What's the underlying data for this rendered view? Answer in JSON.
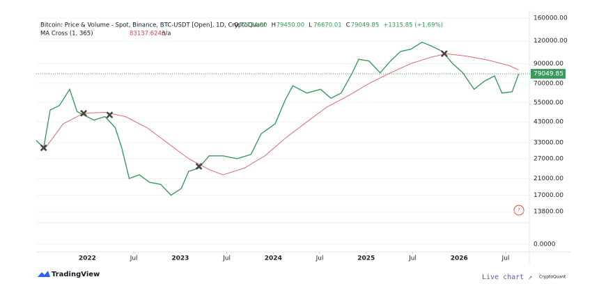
{
  "chart_data": {
    "type": "line",
    "title": "Bitcoin: Price & Volume - Spot, Binance, BTC-USDT [Open], 1D, CryptoQuant",
    "ohlc": [
      {
        "key": "O",
        "text": "77734.00"
      },
      {
        "key": "H",
        "text": "79450.00"
      },
      {
        "key": "L",
        "text": "76670.01"
      },
      {
        "key": "C",
        "text": "79049.85"
      }
    ],
    "change": "+1315.85 (+1.69%)",
    "indicator": {
      "name": "MA Cross (1, 365)",
      "value_text": "83137.6243",
      "extra": "n/a"
    },
    "log_scale": true,
    "grid": true,
    "xlim": [
      2021.45,
      2026.68
    ],
    "xticks": [
      {
        "value": 2022,
        "label": "2022"
      },
      {
        "value": 2022.5,
        "label": "Jul"
      },
      {
        "value": 2023,
        "label": "2023"
      },
      {
        "value": 2023.5,
        "label": "Jul"
      },
      {
        "value": 2024,
        "label": "2024"
      },
      {
        "value": 2024.5,
        "label": "Jul"
      },
      {
        "value": 2025,
        "label": "2025"
      },
      {
        "value": 2025.5,
        "label": "Jul"
      },
      {
        "value": 2026,
        "label": "2026"
      },
      {
        "value": 2026.5,
        "label": "Jul"
      }
    ],
    "ylim": [
      12000,
      178000
    ],
    "yticks": [
      {
        "value": 160000,
        "label": "160000.00"
      },
      {
        "value": 120000,
        "label": "120000.00"
      },
      {
        "value": 90000,
        "label": "90000.00"
      },
      {
        "value": 70000,
        "label": "70000.00"
      },
      {
        "value": 55000,
        "label": "55000.00"
      },
      {
        "value": 43000,
        "label": "43000.00"
      },
      {
        "value": 33000,
        "label": "33000.00"
      },
      {
        "value": 27000,
        "label": "27000.00"
      },
      {
        "value": 21000,
        "label": "21000.00"
      },
      {
        "value": 17000,
        "label": "17000.00"
      },
      {
        "value": 13800,
        "label": "13800.00"
      }
    ],
    "volume_yticks": [
      {
        "value": 0,
        "label": "0.0000"
      }
    ],
    "series": [
      {
        "name": "Price",
        "color": "#3a9a5c",
        "x": [
          2021.45,
          2021.53,
          2021.6,
          2021.7,
          2021.81,
          2021.89,
          2021.96,
          2022.07,
          2022.19,
          2022.3,
          2022.37,
          2022.45,
          2022.56,
          2022.67,
          2022.79,
          2022.9,
          2023.01,
          2023.09,
          2023.2,
          2023.31,
          2023.46,
          2023.61,
          2023.76,
          2023.87,
          2024.02,
          2024.13,
          2024.21,
          2024.36,
          2024.51,
          2024.62,
          2024.73,
          2024.85,
          2024.92,
          2025.03,
          2025.15,
          2025.26,
          2025.37,
          2025.48,
          2025.6,
          2025.71,
          2025.82,
          2025.93,
          2026.04,
          2026.16,
          2026.27,
          2026.38,
          2026.46,
          2026.57,
          2026.64
        ],
        "values": [
          34000,
          31000,
          50000,
          53000,
          65000,
          49000,
          47000,
          44000,
          46000,
          40000,
          31000,
          21000,
          22000,
          20000,
          19500,
          17000,
          18500,
          23000,
          24000,
          28000,
          28000,
          27000,
          28500,
          37000,
          42000,
          57000,
          68000,
          62000,
          65000,
          58000,
          62000,
          80000,
          95000,
          93000,
          80000,
          93000,
          105000,
          108000,
          118000,
          112000,
          105000,
          90000,
          80000,
          65000,
          72000,
          77000,
          62000,
          63000,
          79049.85
        ]
      },
      {
        "name": "MA",
        "color": "#e06a6a",
        "x": [
          2021.53,
          2021.74,
          2021.96,
          2022.19,
          2022.41,
          2022.64,
          2022.86,
          2023.09,
          2023.31,
          2023.46,
          2023.69,
          2023.91,
          2024.13,
          2024.36,
          2024.58,
          2024.81,
          2025.03,
          2025.26,
          2025.48,
          2025.71,
          2025.86,
          2026.08,
          2026.31,
          2026.53,
          2026.64
        ],
        "values": [
          30000,
          42000,
          48000,
          48500,
          46000,
          40000,
          33000,
          27000,
          23500,
          22000,
          24000,
          28000,
          35000,
          43000,
          52000,
          60000,
          70000,
          80000,
          90000,
          98000,
          102000,
          99000,
          94000,
          88000,
          83137.6243
        ]
      }
    ],
    "crosses": {
      "x": [
        2021.53,
        2021.96,
        2022.24,
        2023.2,
        2025.84
      ],
      "values": [
        31000,
        48000,
        47000,
        24500,
        102000
      ]
    },
    "last_price": 79049.85,
    "branding": {
      "left": "TradingView",
      "link": "Live chart ↗",
      "right": "CryptoQuant"
    }
  }
}
